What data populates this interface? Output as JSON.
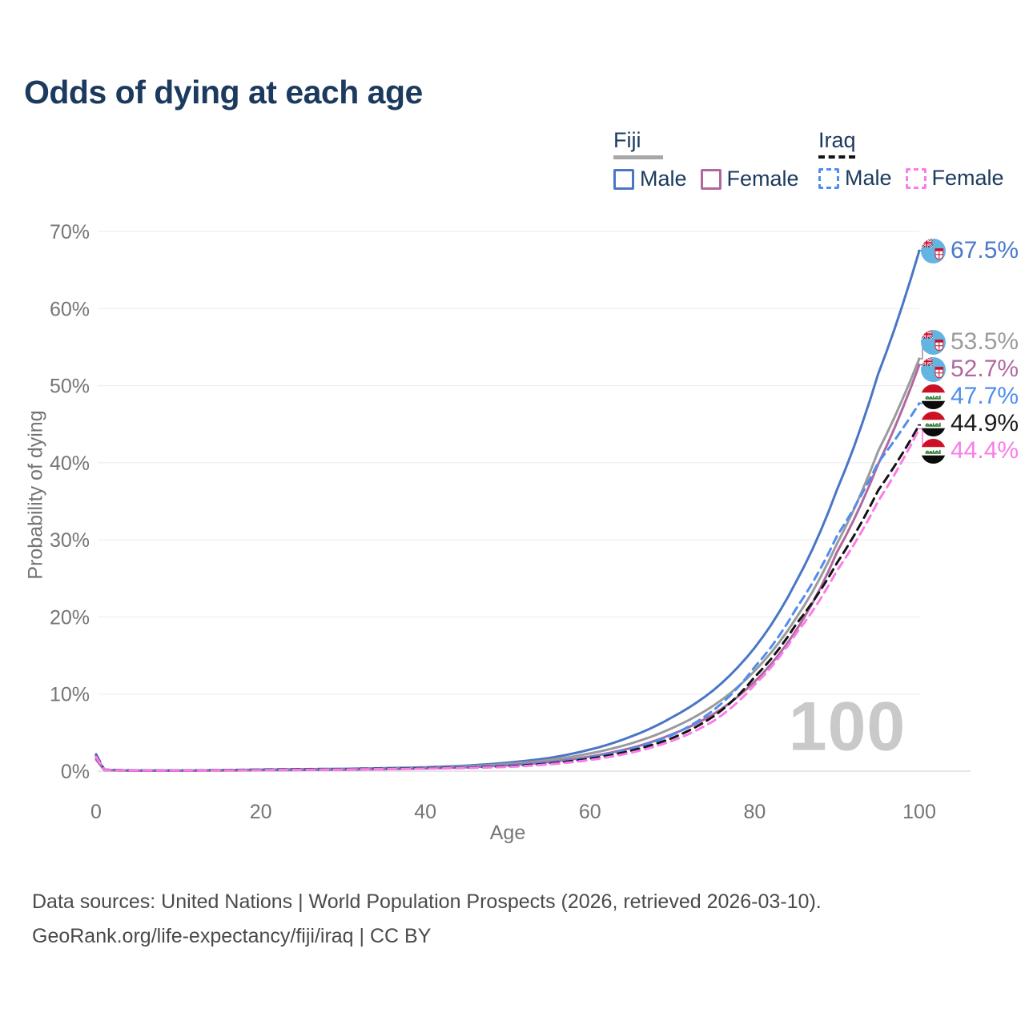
{
  "title": "Odds of dying at each age",
  "legend": {
    "groups": [
      {
        "country": "Fiji",
        "line_style": "solid",
        "line_color": "#a7a7a9",
        "items": [
          {
            "label": "Male",
            "color": "#4a76c6",
            "dashed": false
          },
          {
            "label": "Female",
            "color": "#b069a0",
            "dashed": false
          }
        ]
      },
      {
        "country": "Iraq",
        "line_style": "dashed",
        "line_color": "#141414",
        "items": [
          {
            "label": "Male",
            "color": "#4f8def",
            "dashed": true
          },
          {
            "label": "Female",
            "color": "#fa7ce8",
            "dashed": true
          }
        ]
      }
    ]
  },
  "chart_data": {
    "type": "line",
    "title": "Odds of dying at each age",
    "xlabel": "Age",
    "ylabel": "Probability of dying",
    "xlim": [
      0,
      100
    ],
    "ylim": [
      0,
      70
    ],
    "x_ticks": [
      0,
      20,
      40,
      60,
      80,
      100
    ],
    "y_ticks": [
      0,
      10,
      20,
      30,
      40,
      50,
      60,
      70
    ],
    "y_tick_suffix": "%",
    "grid": true,
    "legend_position": "top-right",
    "x": [
      0,
      1,
      5,
      10,
      15,
      20,
      25,
      30,
      35,
      40,
      45,
      50,
      55,
      60,
      65,
      70,
      75,
      80,
      85,
      90,
      95,
      100
    ],
    "series": [
      {
        "id": "fiji-male",
        "name": "Fiji Male",
        "country": "Fiji",
        "sex": "Male",
        "flag": "fiji",
        "color": "#4a76c6",
        "label_color": "#4a79cc",
        "dashed": false,
        "end_label": "67.5%",
        "values": [
          1.9,
          0.15,
          0.08,
          0.08,
          0.12,
          0.2,
          0.25,
          0.3,
          0.38,
          0.5,
          0.72,
          1.1,
          1.7,
          2.8,
          4.5,
          7.0,
          10.5,
          16.0,
          24.5,
          36.5,
          51.5,
          67.5
        ]
      },
      {
        "id": "fiji-both",
        "name": "Fiji Both sexes",
        "country": "Fiji",
        "sex": "Both",
        "flag": "fiji",
        "color": "#9b9b9d",
        "label_color": "#9b9b9d",
        "dashed": false,
        "end_label": "53.5%",
        "values": [
          1.7,
          0.13,
          0.07,
          0.07,
          0.1,
          0.16,
          0.2,
          0.24,
          0.31,
          0.42,
          0.6,
          0.92,
          1.42,
          2.3,
          3.6,
          5.6,
          8.5,
          13.0,
          19.8,
          29.5,
          41.5,
          53.5
        ]
      },
      {
        "id": "fiji-female",
        "name": "Fiji Female",
        "country": "Fiji",
        "sex": "Female",
        "flag": "fiji",
        "color": "#b069a0",
        "label_color": "#b069a0",
        "dashed": false,
        "end_label": "52.7%",
        "values": [
          1.5,
          0.12,
          0.06,
          0.06,
          0.08,
          0.12,
          0.15,
          0.19,
          0.25,
          0.35,
          0.5,
          0.76,
          1.18,
          1.9,
          3.0,
          4.8,
          7.4,
          11.6,
          18.2,
          28.4,
          39.8,
          52.7
        ]
      },
      {
        "id": "iraq-male",
        "name": "Iraq Male",
        "country": "Iraq",
        "sex": "Male",
        "flag": "iraq",
        "color": "#4f8def",
        "label_color": "#4f8def",
        "dashed": true,
        "end_label": "47.7%",
        "values": [
          2.2,
          0.2,
          0.1,
          0.1,
          0.14,
          0.22,
          0.26,
          0.3,
          0.36,
          0.42,
          0.48,
          0.7,
          1.1,
          1.8,
          2.9,
          4.7,
          7.9,
          13.5,
          21.0,
          30.5,
          40.0,
          47.7
        ]
      },
      {
        "id": "iraq-both",
        "name": "Iraq Both sexes",
        "country": "Iraq",
        "sex": "Both",
        "flag": "iraq",
        "color": "#141414",
        "label_color": "#1a1a1a",
        "dashed": true,
        "end_label": "44.9%",
        "values": [
          2.0,
          0.18,
          0.09,
          0.09,
          0.12,
          0.18,
          0.22,
          0.26,
          0.31,
          0.38,
          0.44,
          0.62,
          0.98,
          1.62,
          2.65,
          4.3,
          7.1,
          12.2,
          19.0,
          27.0,
          36.4,
          44.9
        ]
      },
      {
        "id": "iraq-female",
        "name": "Iraq Female",
        "country": "Iraq",
        "sex": "Female",
        "flag": "iraq",
        "color": "#fa7ce8",
        "label_color": "#fa7ce8",
        "dashed": true,
        "end_label": "44.4%",
        "values": [
          1.9,
          0.16,
          0.08,
          0.08,
          0.1,
          0.14,
          0.18,
          0.22,
          0.27,
          0.33,
          0.4,
          0.55,
          0.88,
          1.45,
          2.4,
          3.95,
          6.5,
          11.2,
          17.8,
          26.0,
          35.0,
          44.4
        ]
      }
    ]
  },
  "annotations": {
    "age_marker": "100"
  },
  "footer": {
    "line1": "Data sources: United Nations | World Population Prospects (2026, retrieved 2026-03-10).",
    "line2": "GeoRank.org/life-expectancy/fiji/iraq | CC BY"
  }
}
